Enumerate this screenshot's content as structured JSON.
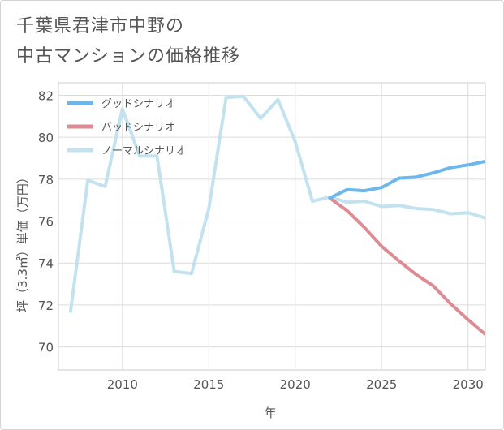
{
  "title_lines": [
    "千葉県君津市中野の",
    "中古マンションの価格推移"
  ],
  "chart_data": {
    "type": "line",
    "xlabel": "年",
    "ylabel": "坪（3.3㎡）単価（万円）",
    "xlim": [
      2006.3,
      2031
    ],
    "ylim": [
      68.9,
      82.6
    ],
    "x_ticks": [
      2010,
      2015,
      2020,
      2025,
      2030
    ],
    "y_ticks": [
      70,
      72,
      74,
      76,
      78,
      80,
      82
    ],
    "grid": true,
    "legend_position": "top-left",
    "series": [
      {
        "name": "グッドシナリオ",
        "color": "#6cb8ec",
        "x": [
          2022,
          2023,
          2024,
          2025,
          2026,
          2027,
          2028,
          2029,
          2030,
          2031
        ],
        "values": [
          77.1,
          77.5,
          77.45,
          77.6,
          78.05,
          78.1,
          78.3,
          78.55,
          78.68,
          78.85
        ]
      },
      {
        "name": "バッドシナリオ",
        "color": "#dc8c92",
        "x": [
          2022,
          2023,
          2024,
          2025,
          2026,
          2027,
          2028,
          2029,
          2030,
          2031
        ],
        "values": [
          77.1,
          76.5,
          75.7,
          74.8,
          74.1,
          73.45,
          72.9,
          72.05,
          71.3,
          70.6
        ]
      },
      {
        "name": "ノーマルシナリオ",
        "color": "#c3e2ef",
        "x": [
          2007,
          2008,
          2009,
          2010,
          2011,
          2012,
          2013,
          2014,
          2015,
          2016,
          2017,
          2018,
          2019,
          2020,
          2021,
          2022,
          2023,
          2024,
          2025,
          2026,
          2027,
          2028,
          2029,
          2030,
          2031
        ],
        "values": [
          71.7,
          77.95,
          77.65,
          81.35,
          79.1,
          79.1,
          73.6,
          73.5,
          76.6,
          81.9,
          81.95,
          80.9,
          81.8,
          79.8,
          76.95,
          77.15,
          76.9,
          76.95,
          76.7,
          76.75,
          76.6,
          76.55,
          76.35,
          76.4,
          76.15
        ]
      }
    ]
  }
}
